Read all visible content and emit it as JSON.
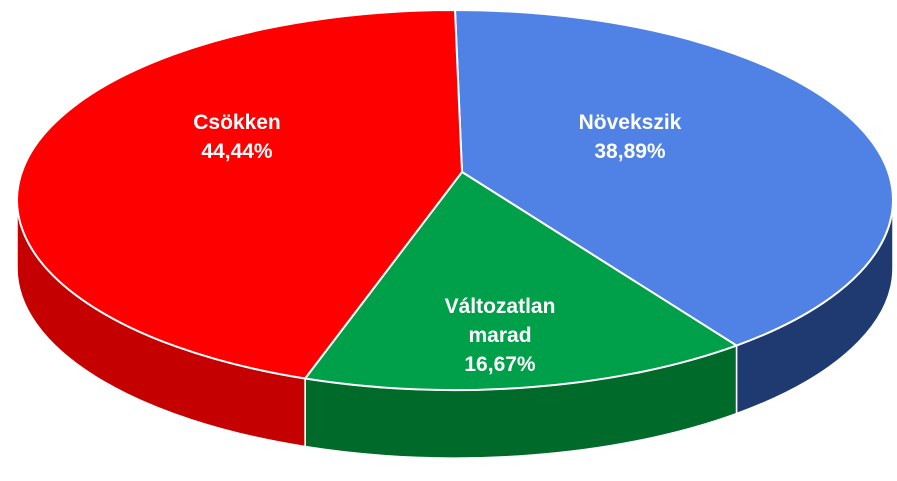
{
  "chart_data": {
    "type": "pie",
    "three_d": true,
    "categories": [
      "Növekszik",
      "Változatlan marad",
      "Csökken"
    ],
    "values": [
      38.89,
      16.67,
      44.44
    ],
    "value_labels": [
      "38,89%",
      "16,67%",
      "44,44%"
    ],
    "colors": [
      "#4f82e4",
      "#00a04a",
      "#ff0000"
    ],
    "side_colors": [
      "#1f3a70",
      "#006a2a",
      "#c40000"
    ]
  }
}
